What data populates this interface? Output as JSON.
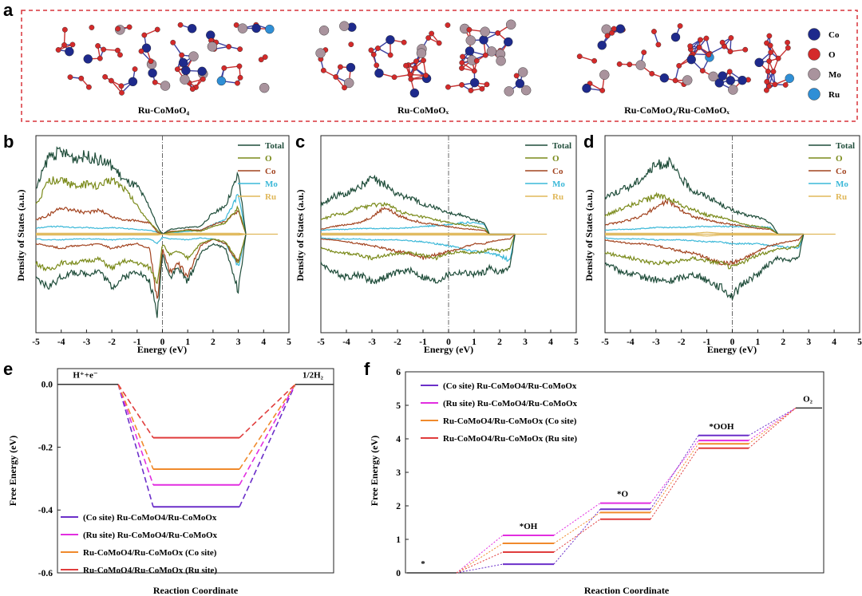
{
  "panel_letters": [
    "a",
    "b",
    "c",
    "d",
    "e",
    "f"
  ],
  "structures": {
    "labels": [
      "Ru-CoMoO₄",
      "Ru-CoMoOₓ",
      "Ru-CoMoO₄/Ru-CoMoOₓ"
    ],
    "atom_legend": [
      {
        "label": "Co",
        "color": "#1e2a8c"
      },
      {
        "label": "O",
        "color": "#d42a2a"
      },
      {
        "label": "Mo",
        "color": "#a9939d"
      },
      {
        "label": "Ru",
        "color": "#2f8fd6"
      }
    ]
  },
  "chart_data": [
    {
      "id": "b",
      "type": "line",
      "title": "",
      "xlabel": "Energy (eV)",
      "ylabel": "Density of States (a.u.)",
      "xlim": [
        -5,
        5
      ],
      "xticks": [
        "-5",
        "-4",
        "-3",
        "-2",
        "-1",
        "0",
        "1",
        "2",
        "3",
        "4",
        "5"
      ],
      "x": [
        -5,
        -4.5,
        -4,
        -3.5,
        -3,
        -2.5,
        -2,
        -1.5,
        -1,
        -0.5,
        -0.2,
        0,
        0.3,
        0.6,
        1,
        1.5,
        2,
        2.5,
        3,
        3.3
      ],
      "series": [
        {
          "name": "Total",
          "color": "#1f4d3a",
          "up": [
            0.46,
            0.82,
            0.86,
            0.8,
            0.82,
            0.78,
            0.72,
            0.56,
            0.5,
            0.28,
            0.08,
            0.0,
            0.05,
            0.06,
            0.07,
            0.08,
            0.22,
            0.3,
            0.62,
            0.0
          ],
          "down": [
            -0.48,
            -0.55,
            -0.45,
            -0.4,
            -0.42,
            -0.38,
            -0.55,
            -0.45,
            -0.38,
            -0.5,
            -0.85,
            -0.2,
            -0.45,
            -0.35,
            -0.5,
            -0.2,
            -0.1,
            -0.15,
            -0.6,
            0.0
          ]
        },
        {
          "name": "O",
          "color": "#7a8a1a",
          "up": [
            0.3,
            0.55,
            0.58,
            0.5,
            0.52,
            0.5,
            0.58,
            0.48,
            0.3,
            0.12,
            0.04,
            0.0,
            0.02,
            0.03,
            0.04,
            0.03,
            0.08,
            0.12,
            0.28,
            0.0
          ],
          "down": [
            -0.3,
            -0.38,
            -0.3,
            -0.3,
            -0.28,
            -0.26,
            -0.36,
            -0.28,
            -0.3,
            -0.35,
            -0.5,
            -0.1,
            -0.22,
            -0.18,
            -0.25,
            -0.1,
            -0.05,
            -0.08,
            -0.3,
            0.0
          ]
        },
        {
          "name": "Co",
          "color": "#a2431f",
          "up": [
            0.15,
            0.2,
            0.28,
            0.25,
            0.22,
            0.26,
            0.18,
            0.15,
            0.14,
            0.12,
            0.02,
            0.0,
            0.03,
            0.03,
            0.05,
            0.04,
            0.1,
            0.14,
            0.25,
            0.0
          ],
          "down": [
            -0.1,
            -0.12,
            -0.15,
            -0.12,
            -0.12,
            -0.1,
            -0.15,
            -0.12,
            -0.1,
            -0.15,
            -0.72,
            -0.15,
            -0.4,
            -0.3,
            -0.45,
            -0.12,
            -0.05,
            -0.1,
            -0.3,
            0.0
          ]
        },
        {
          "name": "Mo",
          "color": "#3bb8d8",
          "up": [
            0.06,
            0.08,
            0.08,
            0.07,
            0.07,
            0.06,
            0.07,
            0.06,
            0.05,
            0.04,
            0.02,
            0.0,
            0.02,
            0.02,
            0.03,
            0.04,
            0.1,
            0.16,
            0.42,
            0.0
          ],
          "down": [
            -0.05,
            -0.06,
            -0.06,
            -0.05,
            -0.05,
            -0.05,
            -0.06,
            -0.05,
            -0.05,
            -0.05,
            -0.1,
            -0.03,
            -0.05,
            -0.05,
            -0.06,
            -0.04,
            -0.05,
            -0.1,
            -0.35,
            0.0
          ]
        },
        {
          "name": "Ru",
          "color": "#e0b85a",
          "up": [
            0.01,
            0.01,
            0.01,
            0.01,
            0.01,
            0.01,
            0.01,
            0.01,
            0.01,
            0.01,
            0.01,
            0.0,
            0.01,
            0.01,
            0.01,
            0.01,
            0.01,
            0.01,
            0.01,
            0.0
          ],
          "down": [
            -0.01,
            -0.01,
            -0.01,
            -0.01,
            -0.01,
            -0.01,
            -0.01,
            -0.01,
            -0.01,
            -0.01,
            -0.01,
            0.0,
            -0.01,
            -0.01,
            -0.01,
            -0.01,
            -0.01,
            -0.01,
            -0.01,
            0.0
          ]
        }
      ]
    },
    {
      "id": "c",
      "type": "line",
      "title": "",
      "xlabel": "Energy (eV)",
      "ylabel": "Density of States (a.u.)",
      "xlim": [
        -5,
        5
      ],
      "xticks": [
        "-5",
        "-4",
        "-3",
        "-2",
        "-1",
        "0",
        "1",
        "2",
        "3",
        "4",
        "5"
      ],
      "x": [
        -5,
        -4.5,
        -4,
        -3.5,
        -3,
        -2.5,
        -2,
        -1.5,
        -1,
        -0.5,
        0,
        0.5,
        1,
        1.4,
        1.6,
        2,
        2.4,
        2.6
      ],
      "series": [
        {
          "name": "Total",
          "color": "#1f4d3a",
          "up": [
            0.3,
            0.4,
            0.42,
            0.5,
            0.58,
            0.52,
            0.42,
            0.38,
            0.32,
            0.28,
            0.22,
            0.2,
            0.15,
            0.12,
            0.0,
            0.0,
            0.0,
            0.0
          ],
          "down": [
            -0.3,
            -0.4,
            -0.45,
            -0.42,
            -0.5,
            -0.45,
            -0.4,
            -0.38,
            -0.45,
            -0.5,
            -0.42,
            -0.4,
            -0.42,
            -0.4,
            -0.35,
            -0.4,
            -0.35,
            0.0
          ]
        },
        {
          "name": "O",
          "color": "#7a8a1a",
          "up": [
            0.15,
            0.2,
            0.22,
            0.28,
            0.3,
            0.32,
            0.25,
            0.2,
            0.18,
            0.15,
            0.12,
            0.1,
            0.08,
            0.06,
            0.0,
            0.0,
            0.0,
            0.0
          ],
          "down": [
            -0.15,
            -0.18,
            -0.2,
            -0.22,
            -0.25,
            -0.22,
            -0.2,
            -0.2,
            -0.22,
            -0.25,
            -0.2,
            -0.18,
            -0.2,
            -0.18,
            -0.15,
            -0.18,
            -0.15,
            0.0
          ]
        },
        {
          "name": "Co",
          "color": "#a2431f",
          "up": [
            0.05,
            0.08,
            0.1,
            0.12,
            0.18,
            0.28,
            0.2,
            0.15,
            0.12,
            0.1,
            0.08,
            0.06,
            0.05,
            0.04,
            0.0,
            0.0,
            0.0,
            0.0
          ],
          "down": [
            -0.05,
            -0.06,
            -0.08,
            -0.1,
            -0.12,
            -0.15,
            -0.18,
            -0.2,
            -0.25,
            -0.22,
            -0.18,
            -0.15,
            -0.1,
            -0.1,
            -0.08,
            -0.06,
            -0.05,
            0.0
          ]
        },
        {
          "name": "Mo",
          "color": "#3bb8d8",
          "up": [
            0.04,
            0.05,
            0.05,
            0.06,
            0.06,
            0.06,
            0.06,
            0.07,
            0.08,
            0.09,
            0.1,
            0.12,
            0.12,
            0.1,
            0.0,
            0.0,
            0.0,
            0.0
          ],
          "down": [
            -0.04,
            -0.05,
            -0.05,
            -0.05,
            -0.06,
            -0.06,
            -0.06,
            -0.07,
            -0.08,
            -0.1,
            -0.12,
            -0.15,
            -0.18,
            -0.2,
            -0.2,
            -0.22,
            -0.28,
            0.0
          ]
        },
        {
          "name": "Ru",
          "color": "#e0b85a",
          "up": [
            0.01,
            0.01,
            0.01,
            0.01,
            0.01,
            0.01,
            0.01,
            0.01,
            0.01,
            0.01,
            0.01,
            0.01,
            0.01,
            0.01,
            0.0,
            0.0,
            0.0,
            0.0
          ],
          "down": [
            -0.01,
            -0.01,
            -0.01,
            -0.01,
            -0.01,
            -0.01,
            -0.01,
            -0.01,
            -0.01,
            -0.01,
            -0.01,
            -0.01,
            -0.01,
            -0.01,
            -0.01,
            -0.01,
            -0.01,
            0.0
          ]
        }
      ]
    },
    {
      "id": "d",
      "type": "line",
      "title": "",
      "xlabel": "Energy (eV)",
      "ylabel": "Density of States (a.u.)",
      "xlim": [
        -5,
        5
      ],
      "xticks": [
        "-5",
        "-4",
        "-3",
        "-2",
        "-1",
        "0",
        "1",
        "2",
        "3",
        "4",
        "5"
      ],
      "x": [
        -5,
        -4.5,
        -4,
        -3.5,
        -3,
        -2.5,
        -2,
        -1.5,
        -1,
        -0.5,
        0,
        0.5,
        1,
        1.5,
        1.8,
        2.2,
        2.6,
        2.8
      ],
      "series": [
        {
          "name": "Total",
          "color": "#1f4d3a",
          "up": [
            0.4,
            0.45,
            0.5,
            0.6,
            0.72,
            0.75,
            0.58,
            0.45,
            0.4,
            0.32,
            0.25,
            0.2,
            0.18,
            0.12,
            0.0,
            0.0,
            0.0,
            0.0
          ],
          "down": [
            -0.3,
            -0.38,
            -0.42,
            -0.45,
            -0.48,
            -0.5,
            -0.45,
            -0.42,
            -0.48,
            -0.55,
            -0.65,
            -0.5,
            -0.42,
            -0.3,
            -0.25,
            -0.28,
            -0.25,
            0.0
          ]
        },
        {
          "name": "O",
          "color": "#7a8a1a",
          "up": [
            0.2,
            0.25,
            0.3,
            0.35,
            0.4,
            0.38,
            0.3,
            0.25,
            0.2,
            0.18,
            0.14,
            0.1,
            0.08,
            0.06,
            0.0,
            0.0,
            0.0,
            0.0
          ],
          "down": [
            -0.2,
            -0.22,
            -0.25,
            -0.28,
            -0.3,
            -0.3,
            -0.28,
            -0.25,
            -0.28,
            -0.3,
            -0.35,
            -0.28,
            -0.22,
            -0.18,
            -0.15,
            -0.15,
            -0.12,
            0.0
          ]
        },
        {
          "name": "Co",
          "color": "#a2431f",
          "up": [
            0.1,
            0.12,
            0.15,
            0.2,
            0.28,
            0.35,
            0.25,
            0.18,
            0.15,
            0.12,
            0.1,
            0.08,
            0.06,
            0.05,
            0.0,
            0.0,
            0.0,
            0.0
          ],
          "down": [
            -0.06,
            -0.08,
            -0.1,
            -0.1,
            -0.12,
            -0.15,
            -0.18,
            -0.2,
            -0.25,
            -0.3,
            -0.3,
            -0.25,
            -0.18,
            -0.12,
            -0.1,
            -0.08,
            -0.06,
            0.0
          ]
        },
        {
          "name": "Mo",
          "color": "#3bb8d8",
          "up": [
            0.04,
            0.05,
            0.05,
            0.06,
            0.07,
            0.07,
            0.07,
            0.08,
            0.08,
            0.08,
            0.08,
            0.08,
            0.08,
            0.07,
            0.0,
            0.0,
            0.0,
            0.0
          ],
          "down": [
            -0.04,
            -0.05,
            -0.05,
            -0.05,
            -0.06,
            -0.06,
            -0.06,
            -0.07,
            -0.08,
            -0.08,
            -0.1,
            -0.1,
            -0.1,
            -0.12,
            -0.12,
            -0.14,
            -0.15,
            0.0
          ]
        },
        {
          "name": "Ru",
          "color": "#e0b85a",
          "up": [
            0.01,
            0.01,
            0.01,
            0.01,
            0.01,
            0.01,
            0.01,
            0.01,
            0.02,
            0.01,
            0.01,
            0.01,
            0.01,
            0.01,
            0.0,
            0.0,
            0.0,
            0.0
          ],
          "down": [
            -0.01,
            -0.01,
            -0.01,
            -0.01,
            -0.01,
            -0.01,
            -0.01,
            -0.01,
            -0.02,
            -0.01,
            -0.01,
            -0.01,
            -0.01,
            -0.01,
            -0.01,
            -0.01,
            -0.01,
            0.0
          ]
        }
      ]
    },
    {
      "id": "e",
      "type": "line",
      "title": "",
      "xlabel": "Reaction Coordinate",
      "ylabel": "Free Energy (eV)",
      "ylim": [
        -0.6,
        0.05
      ],
      "yticks": [
        0.0,
        -0.2,
        -0.4,
        -0.6
      ],
      "ytick_labels": [
        "0.0",
        "-0.2",
        "-0.4",
        "-0.6"
      ],
      "states": [
        "H⁺+e⁻",
        "",
        "1/2H₂"
      ],
      "series": [
        {
          "name": "(Co site) Ru-CoMoO4/Ru-CoMoOx",
          "color": "#6b2fc9",
          "values": [
            0.0,
            -0.39,
            0.0
          ]
        },
        {
          "name": "(Ru site) Ru-CoMoO4/Ru-CoMoOx",
          "color": "#e22ee0",
          "values": [
            0.0,
            -0.32,
            0.0
          ]
        },
        {
          "name": "Ru-CoMoO4/Ru-CoMoOx (Co site)",
          "color": "#f08a2c",
          "values": [
            0.0,
            -0.27,
            0.0
          ]
        },
        {
          "name": "Ru-CoMoO4/Ru-CoMoOx (Ru site)",
          "color": "#e03c3c",
          "values": [
            0.0,
            -0.17,
            0.0
          ]
        }
      ]
    },
    {
      "id": "f",
      "type": "line",
      "title": "",
      "xlabel": "Reaction Coordinate",
      "ylabel": "Free Energy (eV)",
      "ylim": [
        0,
        6
      ],
      "yticks": [
        0,
        1,
        2,
        3,
        4,
        5,
        6
      ],
      "ytick_labels": [
        "0",
        "1",
        "2",
        "3",
        "4",
        "5",
        "6"
      ],
      "states": [
        "*",
        "*OH",
        "*O",
        "*OOH",
        "O₂"
      ],
      "series": [
        {
          "name": "(Co site) Ru-CoMoO4/Ru-CoMoOx",
          "color": "#6b2fc9",
          "values": [
            0.0,
            0.26,
            1.9,
            4.1,
            4.92
          ]
        },
        {
          "name": "(Ru site) Ru-CoMoO4/Ru-CoMoOx",
          "color": "#e22ee0",
          "values": [
            0.0,
            1.12,
            2.08,
            3.95,
            4.92
          ]
        },
        {
          "name": "Ru-CoMoO4/Ru-CoMoOx (Co site)",
          "color": "#f08a2c",
          "values": [
            0.0,
            0.88,
            1.8,
            3.85,
            4.92
          ]
        },
        {
          "name": "Ru-CoMoO4/Ru-CoMoOx (Ru site)",
          "color": "#e03c3c",
          "values": [
            0.0,
            0.62,
            1.6,
            3.72,
            4.92
          ]
        }
      ]
    }
  ],
  "legend_labels": {
    "dos": [
      "Total",
      "O",
      "Co",
      "Mo",
      "Ru"
    ],
    "energy": [
      "(Co site) Ru-CoMoO4/Ru-CoMoOx",
      "(Ru site) Ru-CoMoO4/Ru-CoMoOx",
      "Ru-CoMoO4/Ru-CoMoOx (Co site)",
      "Ru-CoMoO4/Ru-CoMoOx (Ru site)"
    ]
  }
}
